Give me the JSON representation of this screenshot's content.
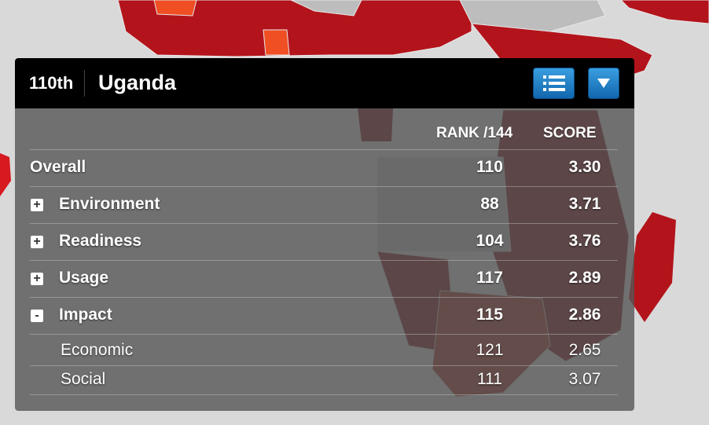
{
  "header": {
    "rank": "110th",
    "country": "Uganda",
    "list_icon": "list-icon",
    "dropdown_icon": "triangle-down-icon"
  },
  "table": {
    "col_rank": "RANK /144",
    "col_score": "SCORE",
    "rows": [
      {
        "toggle": "",
        "label": "Overall",
        "rank": "110",
        "score": "3.30"
      },
      {
        "toggle": "+",
        "label": "Environment",
        "rank": "88",
        "score": "3.71"
      },
      {
        "toggle": "+",
        "label": "Readiness",
        "rank": "104",
        "score": "3.76"
      },
      {
        "toggle": "+",
        "label": "Usage",
        "rank": "117",
        "score": "2.89"
      },
      {
        "toggle": "-",
        "label": "Impact",
        "rank": "115",
        "score": "2.86"
      },
      {
        "toggle": "",
        "label": "Economic",
        "rank": "121",
        "score": "2.65"
      },
      {
        "toggle": "",
        "label": "Social",
        "rank": "111",
        "score": "3.07"
      }
    ]
  },
  "colors": {
    "map_background": "#d9d9d9",
    "country_gray": "#bdbdbd",
    "red_dark": "#7a0d12",
    "red_mid": "#b3141b",
    "red_bright": "#d71920",
    "orange": "#f04e23",
    "button_blue": "#1f7fcc"
  }
}
